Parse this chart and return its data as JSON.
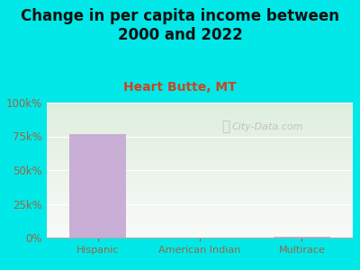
{
  "title": "Change in per capita income between\n2000 and 2022",
  "subtitle": "Heart Butte, MT",
  "categories": [
    "Hispanic",
    "American Indian",
    "Multirace"
  ],
  "values": [
    77000,
    0,
    400
  ],
  "bar_color": "#c9aed6",
  "title_fontsize": 12,
  "subtitle_fontsize": 10,
  "subtitle_color": "#cc4422",
  "title_color": "#111111",
  "background_color": "#00e8e8",
  "plot_bg_top": "#ddeedd",
  "plot_bg_bottom": "#f0f5ee",
  "tick_label_color": "#996644",
  "xlabel_color": "#996644",
  "yticks": [
    0,
    25000,
    50000,
    75000,
    100000
  ],
  "ytick_labels": [
    "0%",
    "25k%",
    "50k%",
    "75k%",
    "100k%"
  ],
  "ylim": [
    0,
    100000
  ],
  "watermark": "City-Data.com",
  "watermark_color": "#bbbbbb"
}
